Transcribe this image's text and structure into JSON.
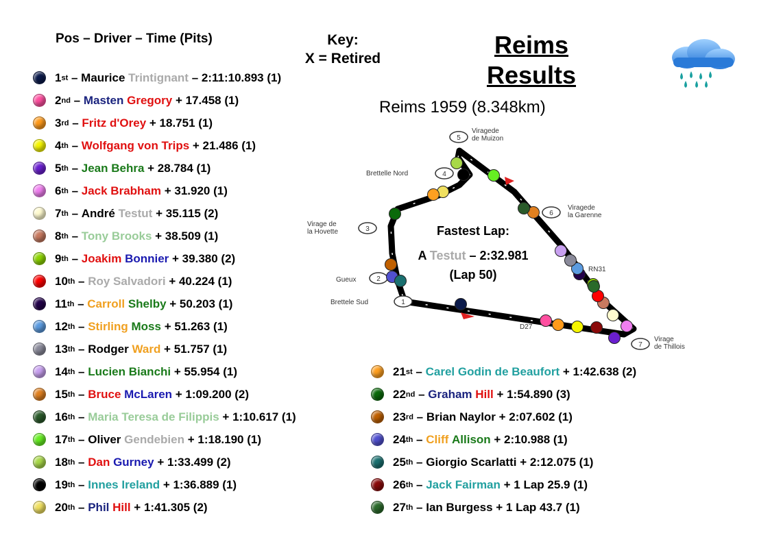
{
  "header": {
    "columns": "Pos – Driver – Time (Pits)"
  },
  "key": {
    "line1": "Key:",
    "line2": "X = Retired"
  },
  "title": {
    "line1": "Reims",
    "line2": "Results"
  },
  "subtitle": "Reims 1959 (8.348km)",
  "weather_icon": "rain-cloud-icon",
  "fastest_lap": {
    "label": "Fastest Lap:",
    "initial": "A",
    "name": "Testut",
    "time": "– 2:32.981",
    "lap": "(Lap 50)",
    "name_color": "#aaaaaa"
  },
  "track": {
    "corners": [
      {
        "num": "1",
        "name": "Brettele Sud"
      },
      {
        "num": "2",
        "name": "Gueux"
      },
      {
        "num": "3",
        "name": "Virage de la Hovette"
      },
      {
        "num": "4",
        "name": "Brettelle Nord"
      },
      {
        "num": "5",
        "name": "Viragede de Muizon"
      },
      {
        "num": "6",
        "name": "Viragede la Garenne"
      },
      {
        "num": "7",
        "name": "Virage de Thillois"
      }
    ],
    "road_labels": [
      "RN31",
      "D27"
    ]
  },
  "results": [
    {
      "pos": "1",
      "ord": "st",
      "parts": [
        [
          "Maurice ",
          "#000"
        ],
        [
          "Trintignant",
          "#aaaaaa"
        ]
      ],
      "time": " – 2:11:10.893 (1)",
      "ball": "#0b1a4a"
    },
    {
      "pos": "2",
      "ord": "nd",
      "parts": [
        [
          "Masten ",
          "#1a237e"
        ],
        [
          "Gregory",
          "#e01010"
        ]
      ],
      "time": " + 17.458 (1)",
      "ball": "#ff4fa0"
    },
    {
      "pos": "3",
      "ord": "rd",
      "parts": [
        [
          "Fritz d'Orey",
          "#e01010"
        ]
      ],
      "time": " + 18.751 (1)",
      "ball": "#ff9a1a"
    },
    {
      "pos": "4",
      "ord": "th",
      "parts": [
        [
          "Wolfgang von Trips",
          "#e01010"
        ]
      ],
      "time": " + 21.486 (1)",
      "ball": "#f5f500"
    },
    {
      "pos": "5",
      "ord": "th",
      "parts": [
        [
          "Jean Behra",
          "#1a7a1a"
        ]
      ],
      "time": " + 28.784 (1)",
      "ball": "#6a1fd0"
    },
    {
      "pos": "6",
      "ord": "th",
      "parts": [
        [
          "Jack Brabham",
          "#e01010"
        ]
      ],
      "time": " + 31.920 (1)",
      "ball": "#f07ff0"
    },
    {
      "pos": "7",
      "ord": "th",
      "parts": [
        [
          "André ",
          "#000"
        ],
        [
          "Testut",
          "#aaaaaa"
        ]
      ],
      "time": " + 35.115 (2)",
      "ball": "#fffbd0"
    },
    {
      "pos": "8",
      "ord": "th",
      "parts": [
        [
          "Tony Brooks",
          "#99cc99"
        ]
      ],
      "time": " + 38.509 (1)",
      "ball": "#c87a60"
    },
    {
      "pos": "9",
      "ord": "th",
      "parts": [
        [
          "Joakim ",
          "#e01010"
        ],
        [
          "Bonnier",
          "#1a1ab0"
        ]
      ],
      "time": " + 39.380 (2)",
      "ball": "#8cd400"
    },
    {
      "pos": "10",
      "ord": "th",
      "parts": [
        [
          "Roy Salvadori",
          "#aaaaaa"
        ]
      ],
      "time": " + 40.224 (1)",
      "ball": "#ff0000"
    },
    {
      "pos": "11",
      "ord": "th",
      "parts": [
        [
          "Carroll ",
          "#f0a020"
        ],
        [
          "Shelby",
          "#1a7a1a"
        ]
      ],
      "time": " + 50.203 (1)",
      "ball": "#22004a"
    },
    {
      "pos": "12",
      "ord": "th",
      "parts": [
        [
          "Stirling ",
          "#f0a020"
        ],
        [
          "Moss",
          "#1a7a1a"
        ]
      ],
      "time": " + 51.263 (1)",
      "ball": "#5b9be0"
    },
    {
      "pos": "13",
      "ord": "th",
      "parts": [
        [
          "Rodger ",
          "#000"
        ],
        [
          "Ward",
          "#f0a020"
        ]
      ],
      "time": " + 51.757 (1)",
      "ball": "#8a8a9a"
    },
    {
      "pos": "14",
      "ord": "th",
      "parts": [
        [
          "Lucien Bianchi",
          "#1a7a1a"
        ]
      ],
      "time": " + 55.954 (1)",
      "ball": "#c8a0f0"
    },
    {
      "pos": "15",
      "ord": "th",
      "parts": [
        [
          "Bruce ",
          "#e01010"
        ],
        [
          "McLaren",
          "#1a1ab0"
        ]
      ],
      "time": " + 1:09.200 (2)",
      "ball": "#e08020"
    },
    {
      "pos": "16",
      "ord": "th",
      "parts": [
        [
          "Maria Teresa de Filippis",
          "#99cc99"
        ]
      ],
      "time": " + 1:10.617 (1)",
      "ball": "#2a5a2a"
    },
    {
      "pos": "17",
      "ord": "th",
      "parts": [
        [
          "Oliver ",
          "#000"
        ],
        [
          "Gendebien",
          "#aaaaaa"
        ]
      ],
      "time": " + 1:18.190 (1)",
      "ball": "#66ee22"
    },
    {
      "pos": "18",
      "ord": "th",
      "parts": [
        [
          "Dan ",
          "#e01010"
        ],
        [
          "Gurney",
          "#1a1ab0"
        ]
      ],
      "time": " + 1:33.499 (2)",
      "ball": "#a8d848"
    },
    {
      "pos": "19",
      "ord": "th",
      "parts": [
        [
          "Innes Ireland",
          "#22a0a0"
        ]
      ],
      "time": " + 1:36.889 (1)",
      "ball": "#000000"
    },
    {
      "pos": "20",
      "ord": "th",
      "parts": [
        [
          "Phil ",
          "#1a237e"
        ],
        [
          "Hill",
          "#e01010"
        ]
      ],
      "time": " + 1:41.305 (2)",
      "ball": "#f0e060"
    }
  ],
  "results_right": [
    {
      "pos": "21",
      "ord": "st",
      "parts": [
        [
          "Carel Godin de Beaufort",
          "#22a0a0"
        ]
      ],
      "time": " + 1:42.638 (2)",
      "ball": "#ffa020"
    },
    {
      "pos": "22",
      "ord": "nd",
      "parts": [
        [
          "Graham ",
          "#1a237e"
        ],
        [
          "Hill",
          "#e01010"
        ]
      ],
      "time": " + 1:54.890 (3)",
      "ball": "#0a6a0a"
    },
    {
      "pos": "23",
      "ord": "rd",
      "parts": [
        [
          "Brian Naylor",
          "#000"
        ]
      ],
      "time": " + 2:07.602 (1)",
      "ball": "#c06000"
    },
    {
      "pos": "24",
      "ord": "th",
      "parts": [
        [
          "Cliff ",
          "#f0a020"
        ],
        [
          "Allison",
          "#1a7a1a"
        ]
      ],
      "time": " + 2:10.988 (1)",
      "ball": "#5050d0"
    },
    {
      "pos": "25",
      "ord": "th",
      "parts": [
        [
          "Giorgio Scarlatti",
          "#000"
        ]
      ],
      "time": " + 2:12.075 (1)",
      "ball": "#1a7070"
    },
    {
      "pos": "26",
      "ord": "th",
      "parts": [
        [
          "Jack Fairman",
          "#22a0a0"
        ]
      ],
      "time": " + 1 Lap 25.9 (1)",
      "ball": "#8a0a0a"
    },
    {
      "pos": "27",
      "ord": "th",
      "parts": [
        [
          "Ian Burgess",
          "#000"
        ]
      ],
      "time": " + 1 Lap 43.7 (1)",
      "ball": "#2a6a2a"
    }
  ]
}
